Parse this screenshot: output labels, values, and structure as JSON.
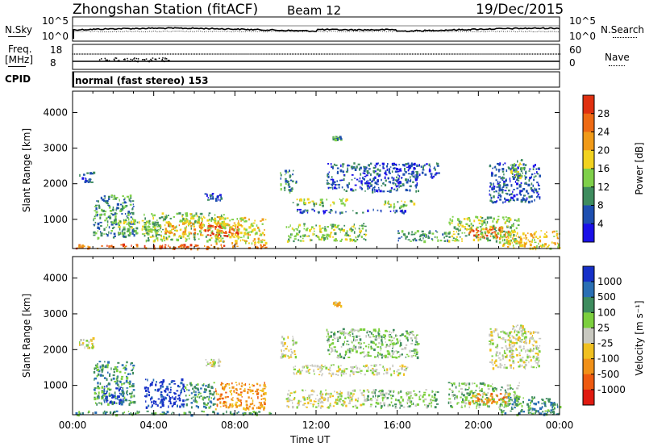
{
  "header": {
    "station": "Zhongshan Station (fitACF)",
    "beam": "Beam 12",
    "date": "19/Dec/2015"
  },
  "top_panels": {
    "nsky_label": "N.Sky",
    "nsky_ticks": [
      "10^5",
      "10^0"
    ],
    "nsearch_label": "N.Search",
    "nsearch_ticks": [
      "10^5",
      "10^0"
    ],
    "freq_label": "Freq.",
    "freq_unit": "[MHz]",
    "freq_ticks": [
      "18",
      "8"
    ],
    "nave_label": "Nave",
    "nave_ticks": [
      "60",
      "0"
    ],
    "cpid_label": "CPID",
    "cpid_text": "normal (fast stereo) 153"
  },
  "chart_data": [
    {
      "type": "heatmap",
      "name": "power",
      "ylabel": "Slant Range [km]",
      "xlabel": "",
      "x_range_hours": [
        0,
        24
      ],
      "ylim": [
        180,
        4600
      ],
      "yticks": [
        "1000",
        "2000",
        "3000",
        "4000"
      ],
      "colorbar": {
        "label": "Power [dB]",
        "ticks": [
          "4",
          "8",
          "12",
          "16",
          "20",
          "24",
          "28"
        ],
        "colors": [
          "#1a10e8",
          "#1e4fb0",
          "#3e8c5e",
          "#7fd04a",
          "#f2d21f",
          "#f09a18",
          "#ee6a14",
          "#e03010"
        ]
      },
      "echo_regions": [
        {
          "t0": 0.0,
          "t1": 9.8,
          "r0": 200,
          "r1": 320,
          "level": 6
        },
        {
          "t0": 0.3,
          "t1": 1.0,
          "r0": 2050,
          "r1": 2350,
          "level": 1
        },
        {
          "t0": 1.0,
          "t1": 3.0,
          "r0": 500,
          "r1": 1700,
          "level": 2
        },
        {
          "t0": 2.0,
          "t1": 4.0,
          "r0": 600,
          "r1": 1000,
          "level": 3
        },
        {
          "t0": 3.5,
          "t1": 7.5,
          "r0": 400,
          "r1": 1200,
          "level": 3
        },
        {
          "t0": 4.5,
          "t1": 6.5,
          "r0": 600,
          "r1": 950,
          "level": 5
        },
        {
          "t0": 6.5,
          "t1": 8.2,
          "r0": 550,
          "r1": 900,
          "level": 7
        },
        {
          "t0": 7.0,
          "t1": 9.5,
          "r0": 350,
          "r1": 1100,
          "level": 4
        },
        {
          "t0": 6.5,
          "t1": 7.3,
          "r0": 1550,
          "r1": 1750,
          "level": 1
        },
        {
          "t0": 10.2,
          "t1": 11.0,
          "r0": 1800,
          "r1": 2400,
          "level": 2
        },
        {
          "t0": 10.8,
          "t1": 13.5,
          "r0": 1400,
          "r1": 1600,
          "level": 3
        },
        {
          "t0": 11.0,
          "t1": 16.5,
          "r0": 1200,
          "r1": 1300,
          "level": 1
        },
        {
          "t0": 10.5,
          "t1": 14.5,
          "r0": 400,
          "r1": 900,
          "level": 3
        },
        {
          "t0": 12.8,
          "t1": 13.2,
          "r0": 3250,
          "r1": 3350,
          "level": 2
        },
        {
          "t0": 12.5,
          "t1": 17.0,
          "r0": 1800,
          "r1": 2600,
          "level": 1
        },
        {
          "t0": 15.0,
          "t1": 16.8,
          "r0": 1350,
          "r1": 1550,
          "level": 3
        },
        {
          "t0": 16.5,
          "t1": 18.0,
          "r0": 2200,
          "r1": 2600,
          "level": 1
        },
        {
          "t0": 18.5,
          "t1": 22.0,
          "r0": 400,
          "r1": 1100,
          "level": 3
        },
        {
          "t0": 19.5,
          "t1": 21.5,
          "r0": 500,
          "r1": 800,
          "level": 6
        },
        {
          "t0": 21.0,
          "t1": 24.0,
          "r0": 200,
          "r1": 700,
          "level": 4
        },
        {
          "t0": 20.5,
          "t1": 23.0,
          "r0": 1500,
          "r1": 2600,
          "level": 1
        },
        {
          "t0": 21.5,
          "t1": 22.3,
          "r0": 2200,
          "r1": 2700,
          "level": 3
        },
        {
          "t0": 16.0,
          "t1": 18.5,
          "r0": 400,
          "r1": 700,
          "level": 2
        }
      ]
    },
    {
      "type": "heatmap",
      "name": "velocity",
      "ylabel": "Slant Range [km]",
      "xlabel": "Time UT",
      "x_range_hours": [
        0,
        24
      ],
      "ylim": [
        180,
        4600
      ],
      "yticks": [
        "1000",
        "2000",
        "3000",
        "4000"
      ],
      "xticks": [
        "00:00",
        "04:00",
        "08:00",
        "12:00",
        "16:00",
        "20:00",
        "00:00"
      ],
      "colorbar": {
        "label": "Velocity [m s⁻¹]",
        "ticks": [
          "1000",
          "500",
          "100",
          "25",
          "-25",
          "-100",
          "-500",
          "-1000"
        ],
        "colors": [
          "#1630c8",
          "#2a6fb4",
          "#3e8c5e",
          "#7ccf3e",
          "#c8c8c0",
          "#f0c020",
          "#f09018",
          "#ee5a10",
          "#e01a10"
        ]
      },
      "echo_regions": [
        {
          "t0": 0.0,
          "t1": 9.8,
          "r0": 200,
          "r1": 300,
          "level": 2
        },
        {
          "t0": 0.3,
          "t1": 1.0,
          "r0": 2050,
          "r1": 2350,
          "level": 4
        },
        {
          "t0": 1.0,
          "t1": 3.0,
          "r0": 500,
          "r1": 1700,
          "level": 2
        },
        {
          "t0": 1.5,
          "t1": 2.5,
          "r0": 500,
          "r1": 1000,
          "level": 0
        },
        {
          "t0": 3.5,
          "t1": 5.5,
          "r0": 400,
          "r1": 1200,
          "level": 0
        },
        {
          "t0": 5.5,
          "t1": 7.0,
          "r0": 400,
          "r1": 1100,
          "level": 2
        },
        {
          "t0": 7.0,
          "t1": 9.5,
          "r0": 350,
          "r1": 1100,
          "level": 6
        },
        {
          "t0": 6.5,
          "t1": 7.3,
          "r0": 1550,
          "r1": 1750,
          "level": 4
        },
        {
          "t0": 10.2,
          "t1": 11.0,
          "r0": 1800,
          "r1": 2400,
          "level": 4
        },
        {
          "t0": 10.8,
          "t1": 16.5,
          "r0": 1300,
          "r1": 1600,
          "level": 4
        },
        {
          "t0": 10.5,
          "t1": 14.5,
          "r0": 400,
          "r1": 900,
          "level": 4
        },
        {
          "t0": 12.8,
          "t1": 13.2,
          "r0": 3250,
          "r1": 3350,
          "level": 5
        },
        {
          "t0": 12.5,
          "t1": 17.0,
          "r0": 1800,
          "r1": 2600,
          "level": 3
        },
        {
          "t0": 14.5,
          "t1": 18.0,
          "r0": 400,
          "r1": 900,
          "level": 3
        },
        {
          "t0": 18.5,
          "t1": 22.0,
          "r0": 400,
          "r1": 1100,
          "level": 3
        },
        {
          "t0": 19.5,
          "t1": 21.5,
          "r0": 500,
          "r1": 800,
          "level": 6
        },
        {
          "t0": 21.0,
          "t1": 24.0,
          "r0": 200,
          "r1": 700,
          "level": 2
        },
        {
          "t0": 20.5,
          "t1": 23.0,
          "r0": 1500,
          "r1": 2600,
          "level": 4
        },
        {
          "t0": 21.5,
          "t1": 22.3,
          "r0": 2200,
          "r1": 2700,
          "level": 4
        }
      ]
    }
  ]
}
